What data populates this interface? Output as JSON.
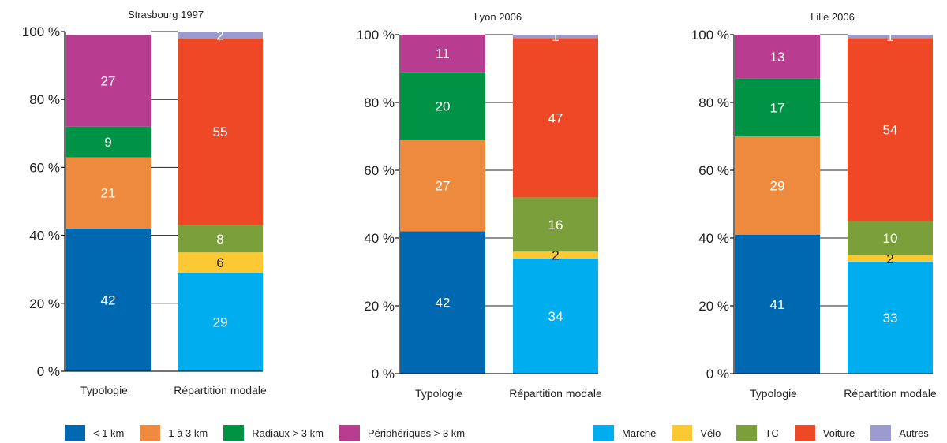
{
  "chart_data": [
    {
      "type": "bar",
      "stacked": true,
      "title": "Strasbourg 1997",
      "categories": [
        "Typologie",
        "Répartition modale"
      ],
      "typologie": [
        42,
        21,
        9,
        27
      ],
      "modale": [
        29,
        6,
        8,
        55,
        2
      ],
      "ylim": [
        0,
        100
      ]
    },
    {
      "type": "bar",
      "stacked": true,
      "title": "Lyon 2006",
      "categories": [
        "Typologie",
        "Répartition modale"
      ],
      "typologie": [
        42,
        27,
        20,
        11
      ],
      "modale": [
        34,
        2,
        16,
        47,
        1
      ],
      "ylim": [
        0,
        100
      ]
    },
    {
      "type": "bar",
      "stacked": true,
      "title": "Lille 2006",
      "categories": [
        "Typologie",
        "Répartition modale"
      ],
      "typologie": [
        41,
        29,
        17,
        13
      ],
      "modale": [
        33,
        2,
        10,
        54,
        1
      ],
      "ylim": [
        0,
        100
      ]
    }
  ],
  "y_ticks": [
    "0 %",
    "20 %",
    "40 %",
    "60 %",
    "80 %",
    "100 %"
  ],
  "legend_typologie": [
    {
      "label": "< 1 km",
      "color": "#0067b1"
    },
    {
      "label": "1 à 3 km",
      "color": "#ee8a3d"
    },
    {
      "label": "Radiaux > 3 km",
      "color": "#009245"
    },
    {
      "label": "Périphériques > 3 km",
      "color": "#b83c8f"
    }
  ],
  "legend_modale": [
    {
      "label": "Marche",
      "color": "#00aeef"
    },
    {
      "label": "Vélo",
      "color": "#fcc833"
    },
    {
      "label": "TC",
      "color": "#7b9f3a"
    },
    {
      "label": "Voiture",
      "color": "#ef4826"
    },
    {
      "label": "Autres",
      "color": "#9b9bcf"
    }
  ]
}
